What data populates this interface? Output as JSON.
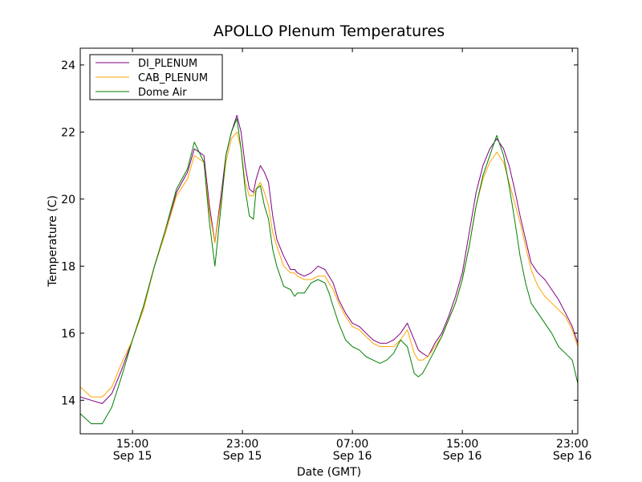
{
  "chart_data": {
    "type": "line",
    "title": "APOLLO Plenum Temperatures",
    "xlabel": "Date (GMT)",
    "ylabel": "Temperature (C)",
    "xlim": [
      11.2,
      47.4
    ],
    "ylim": [
      13,
      24.5
    ],
    "x_unit": "hours since Sep 15 00:00 GMT",
    "yticks": [
      {
        "value": 14,
        "label": "14"
      },
      {
        "value": 16,
        "label": "16"
      },
      {
        "value": 18,
        "label": "18"
      },
      {
        "value": 20,
        "label": "20"
      },
      {
        "value": 22,
        "label": "22"
      },
      {
        "value": 24,
        "label": "24"
      }
    ],
    "xticks": [
      {
        "value": 15,
        "time": "15:00",
        "date": "Sep 15"
      },
      {
        "value": 23,
        "time": "23:00",
        "date": "Sep 15"
      },
      {
        "value": 31,
        "time": "07:00",
        "date": "Sep 16"
      },
      {
        "value": 39,
        "time": "15:00",
        "date": "Sep 16"
      },
      {
        "value": 47,
        "time": "23:00",
        "date": "Sep 16"
      }
    ],
    "legend": {
      "position": "top-left"
    },
    "series": [
      {
        "name": "DI_PLENUM",
        "color": "#800080",
        "x": [
          11.2,
          12.0,
          12.8,
          13.5,
          14.2,
          15.0,
          15.8,
          16.6,
          17.4,
          18.2,
          19.0,
          19.5,
          20.2,
          20.6,
          21.0,
          21.5,
          21.8,
          22.2,
          22.6,
          22.9,
          23.2,
          23.5,
          23.8,
          24.0,
          24.3,
          24.6,
          24.9,
          25.2,
          25.5,
          26.0,
          26.5,
          26.8,
          27.0,
          27.5,
          28.0,
          28.5,
          29.0,
          29.3,
          29.6,
          30.0,
          30.5,
          31.0,
          31.5,
          32.0,
          32.5,
          33.0,
          33.5,
          34.0,
          34.5,
          35.0,
          35.5,
          35.8,
          36.1,
          36.5,
          37.0,
          37.5,
          38.0,
          38.5,
          39.0,
          39.5,
          40.0,
          40.5,
          41.0,
          41.5,
          42.0,
          42.4,
          42.8,
          43.2,
          43.6,
          44.0,
          44.5,
          45.0,
          45.5,
          46.0,
          46.5,
          47.0,
          47.4
        ],
        "values": [
          14.1,
          14.0,
          13.9,
          14.2,
          14.9,
          15.8,
          16.8,
          18.0,
          19.0,
          20.2,
          20.8,
          21.5,
          21.3,
          19.8,
          18.7,
          20.3,
          21.3,
          22.0,
          22.5,
          22.0,
          21.0,
          20.3,
          20.2,
          20.6,
          21.0,
          20.8,
          20.5,
          19.5,
          18.8,
          18.3,
          17.9,
          17.9,
          17.8,
          17.7,
          17.8,
          18.0,
          17.9,
          17.7,
          17.5,
          17.0,
          16.6,
          16.3,
          16.2,
          16.0,
          15.8,
          15.7,
          15.7,
          15.8,
          16.0,
          16.3,
          15.8,
          15.5,
          15.4,
          15.3,
          15.7,
          16.0,
          16.5,
          17.1,
          17.8,
          19.0,
          20.2,
          21.0,
          21.5,
          21.8,
          21.5,
          21.0,
          20.3,
          19.5,
          18.8,
          18.1,
          17.8,
          17.6,
          17.3,
          17.0,
          16.6,
          16.2,
          15.7
        ]
      },
      {
        "name": "CAB_PLENUM",
        "color": "#ffa500",
        "x": [
          11.2,
          12.0,
          12.8,
          13.5,
          14.2,
          15.0,
          15.8,
          16.6,
          17.4,
          18.2,
          19.0,
          19.5,
          20.2,
          20.6,
          21.0,
          21.5,
          21.8,
          22.2,
          22.6,
          22.9,
          23.2,
          23.5,
          23.8,
          24.0,
          24.3,
          24.6,
          24.9,
          25.2,
          25.5,
          26.0,
          26.5,
          26.8,
          27.0,
          27.5,
          28.0,
          28.5,
          29.0,
          29.3,
          29.6,
          30.0,
          30.5,
          31.0,
          31.5,
          32.0,
          32.5,
          33.0,
          33.5,
          34.0,
          34.5,
          35.0,
          35.5,
          35.8,
          36.1,
          36.5,
          37.0,
          37.5,
          38.0,
          38.5,
          39.0,
          39.5,
          40.0,
          40.5,
          41.0,
          41.5,
          42.0,
          42.4,
          42.8,
          43.2,
          43.6,
          44.0,
          44.5,
          45.0,
          45.5,
          46.0,
          46.5,
          47.0,
          47.4
        ],
        "values": [
          14.4,
          14.1,
          14.1,
          14.4,
          15.1,
          15.8,
          16.7,
          18.0,
          19.0,
          20.1,
          20.6,
          21.3,
          21.1,
          19.6,
          18.7,
          20.1,
          21.1,
          21.8,
          22.0,
          21.5,
          20.5,
          20.1,
          20.1,
          20.3,
          20.5,
          20.2,
          19.8,
          19.0,
          18.6,
          18.0,
          17.8,
          17.8,
          17.7,
          17.6,
          17.6,
          17.7,
          17.7,
          17.5,
          17.3,
          16.9,
          16.5,
          16.2,
          16.1,
          15.9,
          15.7,
          15.6,
          15.6,
          15.6,
          15.8,
          16.1,
          15.4,
          15.2,
          15.2,
          15.3,
          15.6,
          15.9,
          16.4,
          16.9,
          17.6,
          18.6,
          19.8,
          20.6,
          21.1,
          21.4,
          21.1,
          20.5,
          19.9,
          19.3,
          18.6,
          17.9,
          17.4,
          17.1,
          16.9,
          16.7,
          16.5,
          16.1,
          15.6
        ]
      },
      {
        "name": "Dome Air",
        "color": "#008000",
        "x": [
          11.2,
          12.0,
          12.8,
          13.5,
          14.2,
          15.0,
          15.8,
          16.6,
          17.4,
          18.2,
          19.0,
          19.5,
          20.2,
          20.6,
          21.0,
          21.5,
          21.8,
          22.2,
          22.6,
          22.9,
          23.2,
          23.5,
          23.8,
          24.0,
          24.3,
          24.6,
          24.9,
          25.2,
          25.5,
          26.0,
          26.5,
          26.8,
          27.0,
          27.5,
          28.0,
          28.5,
          29.0,
          29.3,
          29.6,
          30.0,
          30.5,
          31.0,
          31.5,
          32.0,
          32.5,
          33.0,
          33.5,
          34.0,
          34.5,
          35.0,
          35.5,
          35.8,
          36.1,
          36.5,
          37.0,
          37.5,
          38.0,
          38.5,
          39.0,
          39.5,
          40.0,
          40.5,
          41.0,
          41.5,
          42.0,
          42.4,
          42.8,
          43.2,
          43.6,
          44.0,
          44.5,
          45.0,
          45.5,
          46.0,
          46.5,
          47.0,
          47.4
        ],
        "values": [
          13.6,
          13.3,
          13.3,
          13.8,
          14.7,
          15.8,
          16.8,
          18.0,
          19.1,
          20.3,
          20.9,
          21.7,
          21.1,
          19.3,
          18.0,
          20.0,
          21.3,
          22.0,
          22.4,
          21.5,
          20.3,
          19.5,
          19.4,
          20.3,
          20.4,
          19.8,
          19.4,
          18.5,
          18.0,
          17.4,
          17.3,
          17.1,
          17.2,
          17.2,
          17.5,
          17.6,
          17.5,
          17.2,
          16.8,
          16.3,
          15.8,
          15.6,
          15.5,
          15.3,
          15.2,
          15.1,
          15.2,
          15.4,
          15.8,
          15.6,
          14.8,
          14.7,
          14.8,
          15.1,
          15.5,
          15.9,
          16.4,
          16.9,
          17.6,
          18.6,
          19.8,
          20.7,
          21.3,
          21.9,
          21.3,
          20.4,
          19.4,
          18.3,
          17.5,
          16.9,
          16.6,
          16.3,
          16.0,
          15.6,
          15.4,
          15.2,
          14.5
        ]
      }
    ]
  }
}
